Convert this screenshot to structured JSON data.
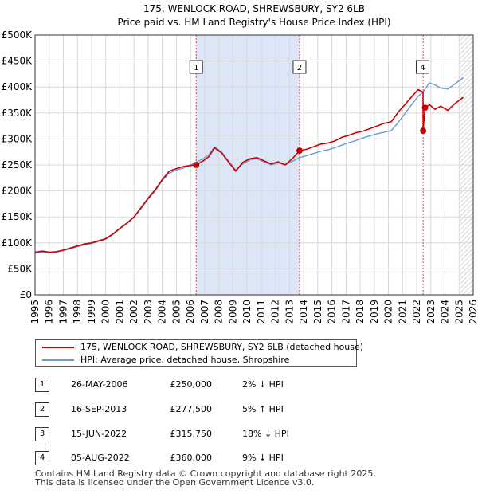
{
  "chart_data": {
    "type": "line",
    "title": "175, WENLOCK ROAD, SHREWSBURY, SY2 6LB",
    "subtitle": "Price paid vs. HM Land Registry's House Price Index (HPI)",
    "xlim": [
      1995,
      2026
    ],
    "ylim": [
      0,
      500000
    ],
    "y_ticks": [
      0,
      50000,
      100000,
      150000,
      200000,
      250000,
      300000,
      350000,
      400000,
      450000,
      500000
    ],
    "y_tick_labels": [
      "£0",
      "£50K",
      "£100K",
      "£150K",
      "£200K",
      "£250K",
      "£300K",
      "£350K",
      "£400K",
      "£450K",
      "£500K"
    ],
    "x_ticks": [
      1995,
      1996,
      1997,
      1998,
      1999,
      2000,
      2001,
      2002,
      2003,
      2004,
      2005,
      2006,
      2007,
      2008,
      2009,
      2010,
      2011,
      2012,
      2013,
      2014,
      2015,
      2016,
      2017,
      2018,
      2019,
      2020,
      2021,
      2022,
      2023,
      2024,
      2025,
      2026
    ],
    "x_tick_labels": [
      "1995",
      "1996",
      "1997",
      "1998",
      "1999",
      "2000",
      "2001",
      "2002",
      "2003",
      "2004",
      "2005",
      "2006",
      "2007",
      "2008",
      "2009",
      "2010",
      "2011",
      "2012",
      "2013",
      "2014",
      "2015",
      "2016",
      "2017",
      "2018",
      "2019",
      "2020",
      "2021",
      "2022",
      "2023",
      "2024",
      "2025",
      "2026"
    ],
    "grid": true,
    "shaded_region": [
      2006.4,
      2013.71
    ],
    "future_hatch_from": 2025.0,
    "series": [
      {
        "name": "175, WENLOCK ROAD, SHREWSBURY, SY2 6LB (detached house)",
        "color": "#cc0000",
        "points": [
          [
            1995.0,
            82000
          ],
          [
            1995.5,
            84000
          ],
          [
            1996.0,
            82000
          ],
          [
            1996.5,
            83000
          ],
          [
            1997.0,
            86000
          ],
          [
            1997.5,
            90000
          ],
          [
            1998.0,
            94000
          ],
          [
            1998.5,
            98000
          ],
          [
            1999.0,
            100000
          ],
          [
            1999.5,
            104000
          ],
          [
            2000.0,
            108000
          ],
          [
            2000.5,
            117000
          ],
          [
            2001.0,
            128000
          ],
          [
            2001.5,
            138000
          ],
          [
            2002.0,
            150000
          ],
          [
            2002.5,
            168000
          ],
          [
            2003.0,
            186000
          ],
          [
            2003.5,
            202000
          ],
          [
            2004.0,
            222000
          ],
          [
            2004.5,
            238000
          ],
          [
            2005.0,
            243000
          ],
          [
            2005.5,
            247000
          ],
          [
            2006.0,
            249000
          ],
          [
            2006.4,
            250000
          ],
          [
            2006.9,
            258000
          ],
          [
            2007.3,
            266000
          ],
          [
            2007.7,
            283000
          ],
          [
            2008.2,
            273000
          ],
          [
            2008.7,
            255000
          ],
          [
            2009.2,
            238000
          ],
          [
            2009.7,
            255000
          ],
          [
            2010.2,
            262000
          ],
          [
            2010.7,
            264000
          ],
          [
            2011.2,
            258000
          ],
          [
            2011.7,
            252000
          ],
          [
            2012.2,
            256000
          ],
          [
            2012.7,
            250000
          ],
          [
            2013.2,
            262000
          ],
          [
            2013.71,
            277500
          ],
          [
            2014.2,
            280000
          ],
          [
            2014.7,
            285000
          ],
          [
            2015.2,
            290000
          ],
          [
            2015.7,
            292000
          ],
          [
            2016.2,
            296000
          ],
          [
            2016.7,
            303000
          ],
          [
            2017.2,
            307000
          ],
          [
            2017.7,
            312000
          ],
          [
            2018.2,
            315000
          ],
          [
            2018.7,
            320000
          ],
          [
            2019.2,
            325000
          ],
          [
            2019.7,
            330000
          ],
          [
            2020.2,
            333000
          ],
          [
            2020.7,
            352000
          ],
          [
            2021.2,
            367000
          ],
          [
            2021.7,
            383000
          ],
          [
            2022.1,
            395000
          ],
          [
            2022.45,
            390000
          ],
          [
            2022.455,
            315750
          ],
          [
            2022.59,
            360000
          ],
          [
            2022.9,
            366000
          ],
          [
            2023.3,
            357000
          ],
          [
            2023.7,
            363000
          ],
          [
            2024.2,
            355000
          ],
          [
            2024.7,
            368000
          ],
          [
            2025.3,
            380000
          ]
        ]
      },
      {
        "name": "HPI: Average price, detached house, Shropshire",
        "color": "#6b9bd2",
        "points": [
          [
            1995.0,
            80000
          ],
          [
            1995.5,
            82000
          ],
          [
            1996.0,
            81000
          ],
          [
            1996.5,
            82000
          ],
          [
            1997.0,
            85000
          ],
          [
            1997.5,
            89000
          ],
          [
            1998.0,
            93000
          ],
          [
            1998.5,
            96000
          ],
          [
            1999.0,
            99000
          ],
          [
            1999.5,
            103000
          ],
          [
            2000.0,
            107000
          ],
          [
            2000.5,
            116000
          ],
          [
            2001.0,
            127000
          ],
          [
            2001.5,
            137000
          ],
          [
            2002.0,
            149000
          ],
          [
            2002.5,
            166000
          ],
          [
            2003.0,
            184000
          ],
          [
            2003.5,
            200000
          ],
          [
            2004.0,
            220000
          ],
          [
            2004.5,
            234000
          ],
          [
            2005.0,
            240000
          ],
          [
            2005.5,
            244000
          ],
          [
            2006.0,
            250000
          ],
          [
            2006.4,
            255000
          ],
          [
            2006.9,
            262000
          ],
          [
            2007.3,
            270000
          ],
          [
            2007.7,
            285000
          ],
          [
            2008.2,
            275000
          ],
          [
            2008.7,
            257000
          ],
          [
            2009.2,
            240000
          ],
          [
            2009.7,
            252000
          ],
          [
            2010.2,
            260000
          ],
          [
            2010.7,
            262000
          ],
          [
            2011.2,
            256000
          ],
          [
            2011.7,
            250000
          ],
          [
            2012.2,
            254000
          ],
          [
            2012.7,
            250000
          ],
          [
            2013.2,
            257000
          ],
          [
            2013.71,
            264000
          ],
          [
            2014.2,
            268000
          ],
          [
            2014.7,
            272000
          ],
          [
            2015.2,
            276000
          ],
          [
            2015.7,
            279000
          ],
          [
            2016.2,
            283000
          ],
          [
            2016.7,
            288000
          ],
          [
            2017.2,
            293000
          ],
          [
            2017.7,
            297000
          ],
          [
            2018.2,
            302000
          ],
          [
            2018.7,
            306000
          ],
          [
            2019.2,
            310000
          ],
          [
            2019.7,
            313000
          ],
          [
            2020.2,
            316000
          ],
          [
            2020.7,
            332000
          ],
          [
            2021.2,
            350000
          ],
          [
            2021.7,
            368000
          ],
          [
            2022.1,
            382000
          ],
          [
            2022.45,
            390000
          ],
          [
            2022.59,
            396000
          ],
          [
            2022.9,
            408000
          ],
          [
            2023.3,
            404000
          ],
          [
            2023.7,
            398000
          ],
          [
            2024.2,
            396000
          ],
          [
            2024.7,
            406000
          ],
          [
            2025.3,
            418000
          ]
        ]
      }
    ],
    "sales": [
      {
        "id": "1",
        "date": "26-MAY-2006",
        "x": 2006.4,
        "price": 250000,
        "price_label": "£250,000",
        "hpi_label": "2% ↓ HPI"
      },
      {
        "id": "2",
        "date": "16-SEP-2013",
        "x": 2013.71,
        "price": 277500,
        "price_label": "£277,500",
        "hpi_label": "5% ↑ HPI"
      },
      {
        "id": "3",
        "date": "15-JUN-2022",
        "x": 2022.455,
        "price": 315750,
        "price_label": "£315,750",
        "hpi_label": "18% ↓ HPI"
      },
      {
        "id": "4",
        "date": "05-AUG-2022",
        "x": 2022.59,
        "price": 360000,
        "price_label": "£360,000",
        "hpi_label": "9% ↓ HPI"
      }
    ]
  },
  "legend": {
    "property_label": "175, WENLOCK ROAD, SHREWSBURY, SY2 6LB (detached house)",
    "hpi_label": "HPI: Average price, detached house, Shropshire",
    "property_color": "#cc0000",
    "hpi_color": "#6b9bd2"
  },
  "footer": {
    "line1": "Contains HM Land Registry data © Crown copyright and database right 2025.",
    "line2": "This data is licensed under the Open Government Licence v3.0."
  }
}
